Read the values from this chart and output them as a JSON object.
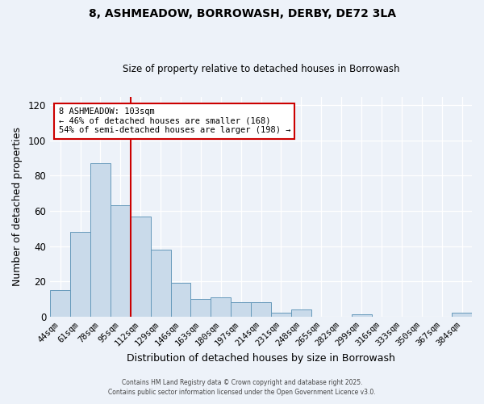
{
  "title": "8, ASHMEADOW, BORROWASH, DERBY, DE72 3LA",
  "subtitle": "Size of property relative to detached houses in Borrowash",
  "xlabel": "Distribution of detached houses by size in Borrowash",
  "ylabel": "Number of detached properties",
  "categories": [
    "44sqm",
    "61sqm",
    "78sqm",
    "95sqm",
    "112sqm",
    "129sqm",
    "146sqm",
    "163sqm",
    "180sqm",
    "197sqm",
    "214sqm",
    "231sqm",
    "248sqm",
    "265sqm",
    "282sqm",
    "299sqm",
    "316sqm",
    "333sqm",
    "350sqm",
    "367sqm",
    "384sqm"
  ],
  "values": [
    15,
    48,
    87,
    63,
    57,
    38,
    19,
    10,
    11,
    8,
    8,
    2,
    4,
    0,
    0,
    1,
    0,
    0,
    0,
    0,
    2
  ],
  "bar_color": "#c9daea",
  "bar_edge_color": "#6699bb",
  "vline_x": 3.5,
  "vline_color": "#cc0000",
  "annotation_title": "8 ASHMEADOW: 103sqm",
  "annotation_line1": "← 46% of detached houses are smaller (168)",
  "annotation_line2": "54% of semi-detached houses are larger (198) →",
  "annotation_box_color": "#ffffff",
  "annotation_box_edge": "#cc0000",
  "ylim": [
    0,
    125
  ],
  "yticks": [
    0,
    20,
    40,
    60,
    80,
    100,
    120
  ],
  "footer1": "Contains HM Land Registry data © Crown copyright and database right 2025.",
  "footer2": "Contains public sector information licensed under the Open Government Licence v3.0.",
  "background_color": "#edf2f9",
  "grid_color": "#ffffff"
}
